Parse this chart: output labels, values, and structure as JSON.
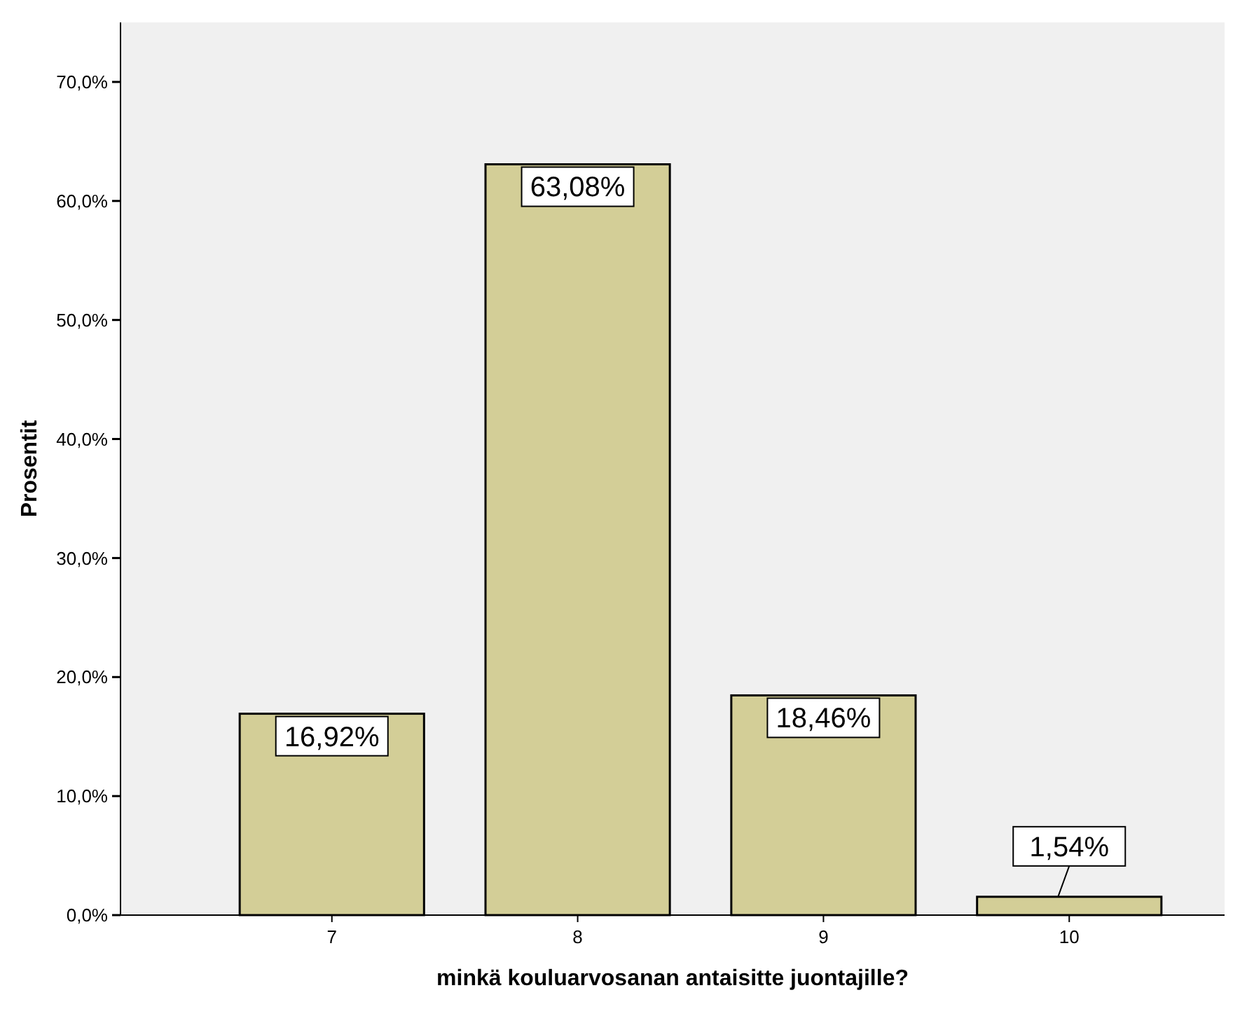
{
  "chart_data": {
    "type": "bar",
    "xlabel": "minkä kouluarvosanan antaisitte juontajille?",
    "ylabel": "Prosentit",
    "categories": [
      "7",
      "8",
      "9",
      "10"
    ],
    "values": [
      16.92,
      63.08,
      18.46,
      1.54
    ],
    "value_labels": [
      "16,92%",
      "63,08%",
      "18,46%",
      "1,54%"
    ],
    "color": "#d3ce97",
    "ylim": [
      0,
      75
    ],
    "yticks": [
      {
        "value": 0,
        "label": "0,0%"
      },
      {
        "value": 10,
        "label": "10,0%"
      },
      {
        "value": 20,
        "label": "20,0%"
      },
      {
        "value": 30,
        "label": "30,0%"
      },
      {
        "value": 40,
        "label": "40,0%"
      },
      {
        "value": 50,
        "label": "50,0%"
      },
      {
        "value": 60,
        "label": "60,0%"
      },
      {
        "value": 70,
        "label": "70,0%"
      }
    ],
    "grid": false
  }
}
